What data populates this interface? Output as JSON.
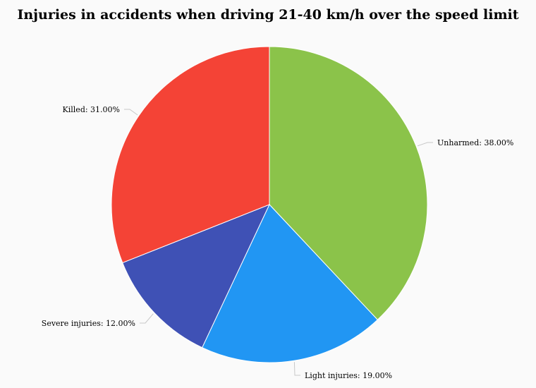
{
  "chart_data": {
    "type": "pie",
    "title": "Injuries in accidents when driving 21-40 km/h over the speed limit",
    "slices": [
      {
        "name": "Unharmed",
        "value": 38.0,
        "label": "Unharmed: 38.00%",
        "color": "#8bc34a"
      },
      {
        "name": "Light injuries",
        "value": 19.0,
        "label": "Light injuries: 19.00%",
        "color": "#2196f3"
      },
      {
        "name": "Severe injuries",
        "value": 12.0,
        "label": "Severe injuries: 12.00%",
        "color": "#3f51b5"
      },
      {
        "name": "Killed",
        "value": 31.0,
        "label": "Killed: 31.00%",
        "color": "#f44336"
      }
    ],
    "start": "12 o'clock",
    "direction": "clockwise",
    "legend": "none"
  }
}
